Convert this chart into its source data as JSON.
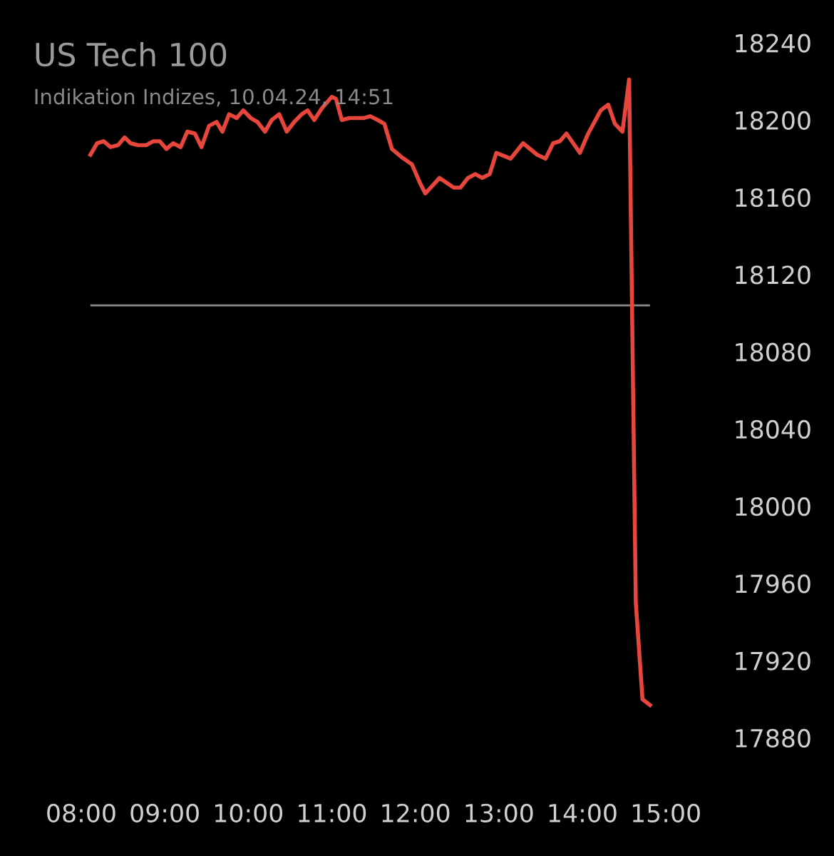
{
  "chart_data": {
    "type": "line",
    "title": "US Tech 100",
    "subtitle": "Indikation Indizes, 10.04.24, 14:51",
    "series": [
      {
        "color": "#e8453c",
        "x": [
          8.11,
          8.19,
          8.27,
          8.35,
          8.44,
          8.52,
          8.59,
          8.68,
          8.78,
          8.86,
          8.94,
          9.02,
          9.1,
          9.19,
          9.27,
          9.36,
          9.44,
          9.53,
          9.62,
          9.69,
          9.77,
          9.86,
          9.94,
          10.03,
          10.11,
          10.2,
          10.28,
          10.37,
          10.46,
          10.55,
          10.64,
          10.71,
          10.79,
          10.88,
          11.0,
          11.05,
          11.12,
          11.21,
          11.29,
          11.38,
          11.46,
          11.55,
          11.63,
          11.72,
          11.83,
          11.96,
          12.06,
          12.12,
          12.29,
          12.46,
          12.54,
          12.63,
          12.72,
          12.8,
          12.89,
          12.97,
          13.14,
          13.29,
          13.46,
          13.56,
          13.65,
          13.73,
          13.81,
          13.97,
          14.07,
          14.22,
          14.31,
          14.39,
          14.48,
          14.56,
          14.64,
          14.72,
          14.81
        ],
        "values": [
          18182,
          18188,
          18189,
          18186,
          18187,
          18191,
          18188,
          18187,
          18187,
          18189,
          18189,
          18185,
          18188,
          18186,
          18194,
          18193,
          18186,
          18197,
          18199,
          18194,
          18203,
          18201,
          18205,
          18201,
          18199,
          18194,
          18200,
          18203,
          18194,
          18199,
          18203,
          18205,
          18200,
          18206,
          18212,
          18211,
          18200,
          18201,
          18201,
          18201,
          18202,
          18200,
          18198,
          18185,
          18181,
          18177,
          18167,
          18162,
          18170,
          18165,
          18165,
          18170,
          18172,
          18170,
          18172,
          18183,
          18180,
          18188,
          18182,
          18180,
          18188,
          18189,
          18193,
          18183,
          18193,
          18205,
          18208,
          18198,
          18194,
          18221,
          17950,
          17900,
          17897
        ]
      }
    ],
    "xlim": [
      8,
      15
    ],
    "xticks": [
      {
        "value": 8,
        "label": "08:00"
      },
      {
        "value": 9,
        "label": "09:00"
      },
      {
        "value": 10,
        "label": "10:00"
      },
      {
        "value": 11,
        "label": "11:00"
      },
      {
        "value": 12,
        "label": "12:00"
      },
      {
        "value": 13,
        "label": "13:00"
      },
      {
        "value": 14,
        "label": "14:00"
      },
      {
        "value": 15,
        "label": "15:00"
      }
    ],
    "ylim": [
      17880,
      18240
    ],
    "yticks": [
      17880,
      17920,
      17960,
      18000,
      18040,
      18080,
      18120,
      18160,
      18200,
      18240
    ],
    "ref_lines": [
      {
        "axis": "y",
        "value": 18104,
        "color": "#8a8a8a"
      }
    ],
    "grid": false,
    "legend": false,
    "marker": "none",
    "line_style": "solid"
  }
}
